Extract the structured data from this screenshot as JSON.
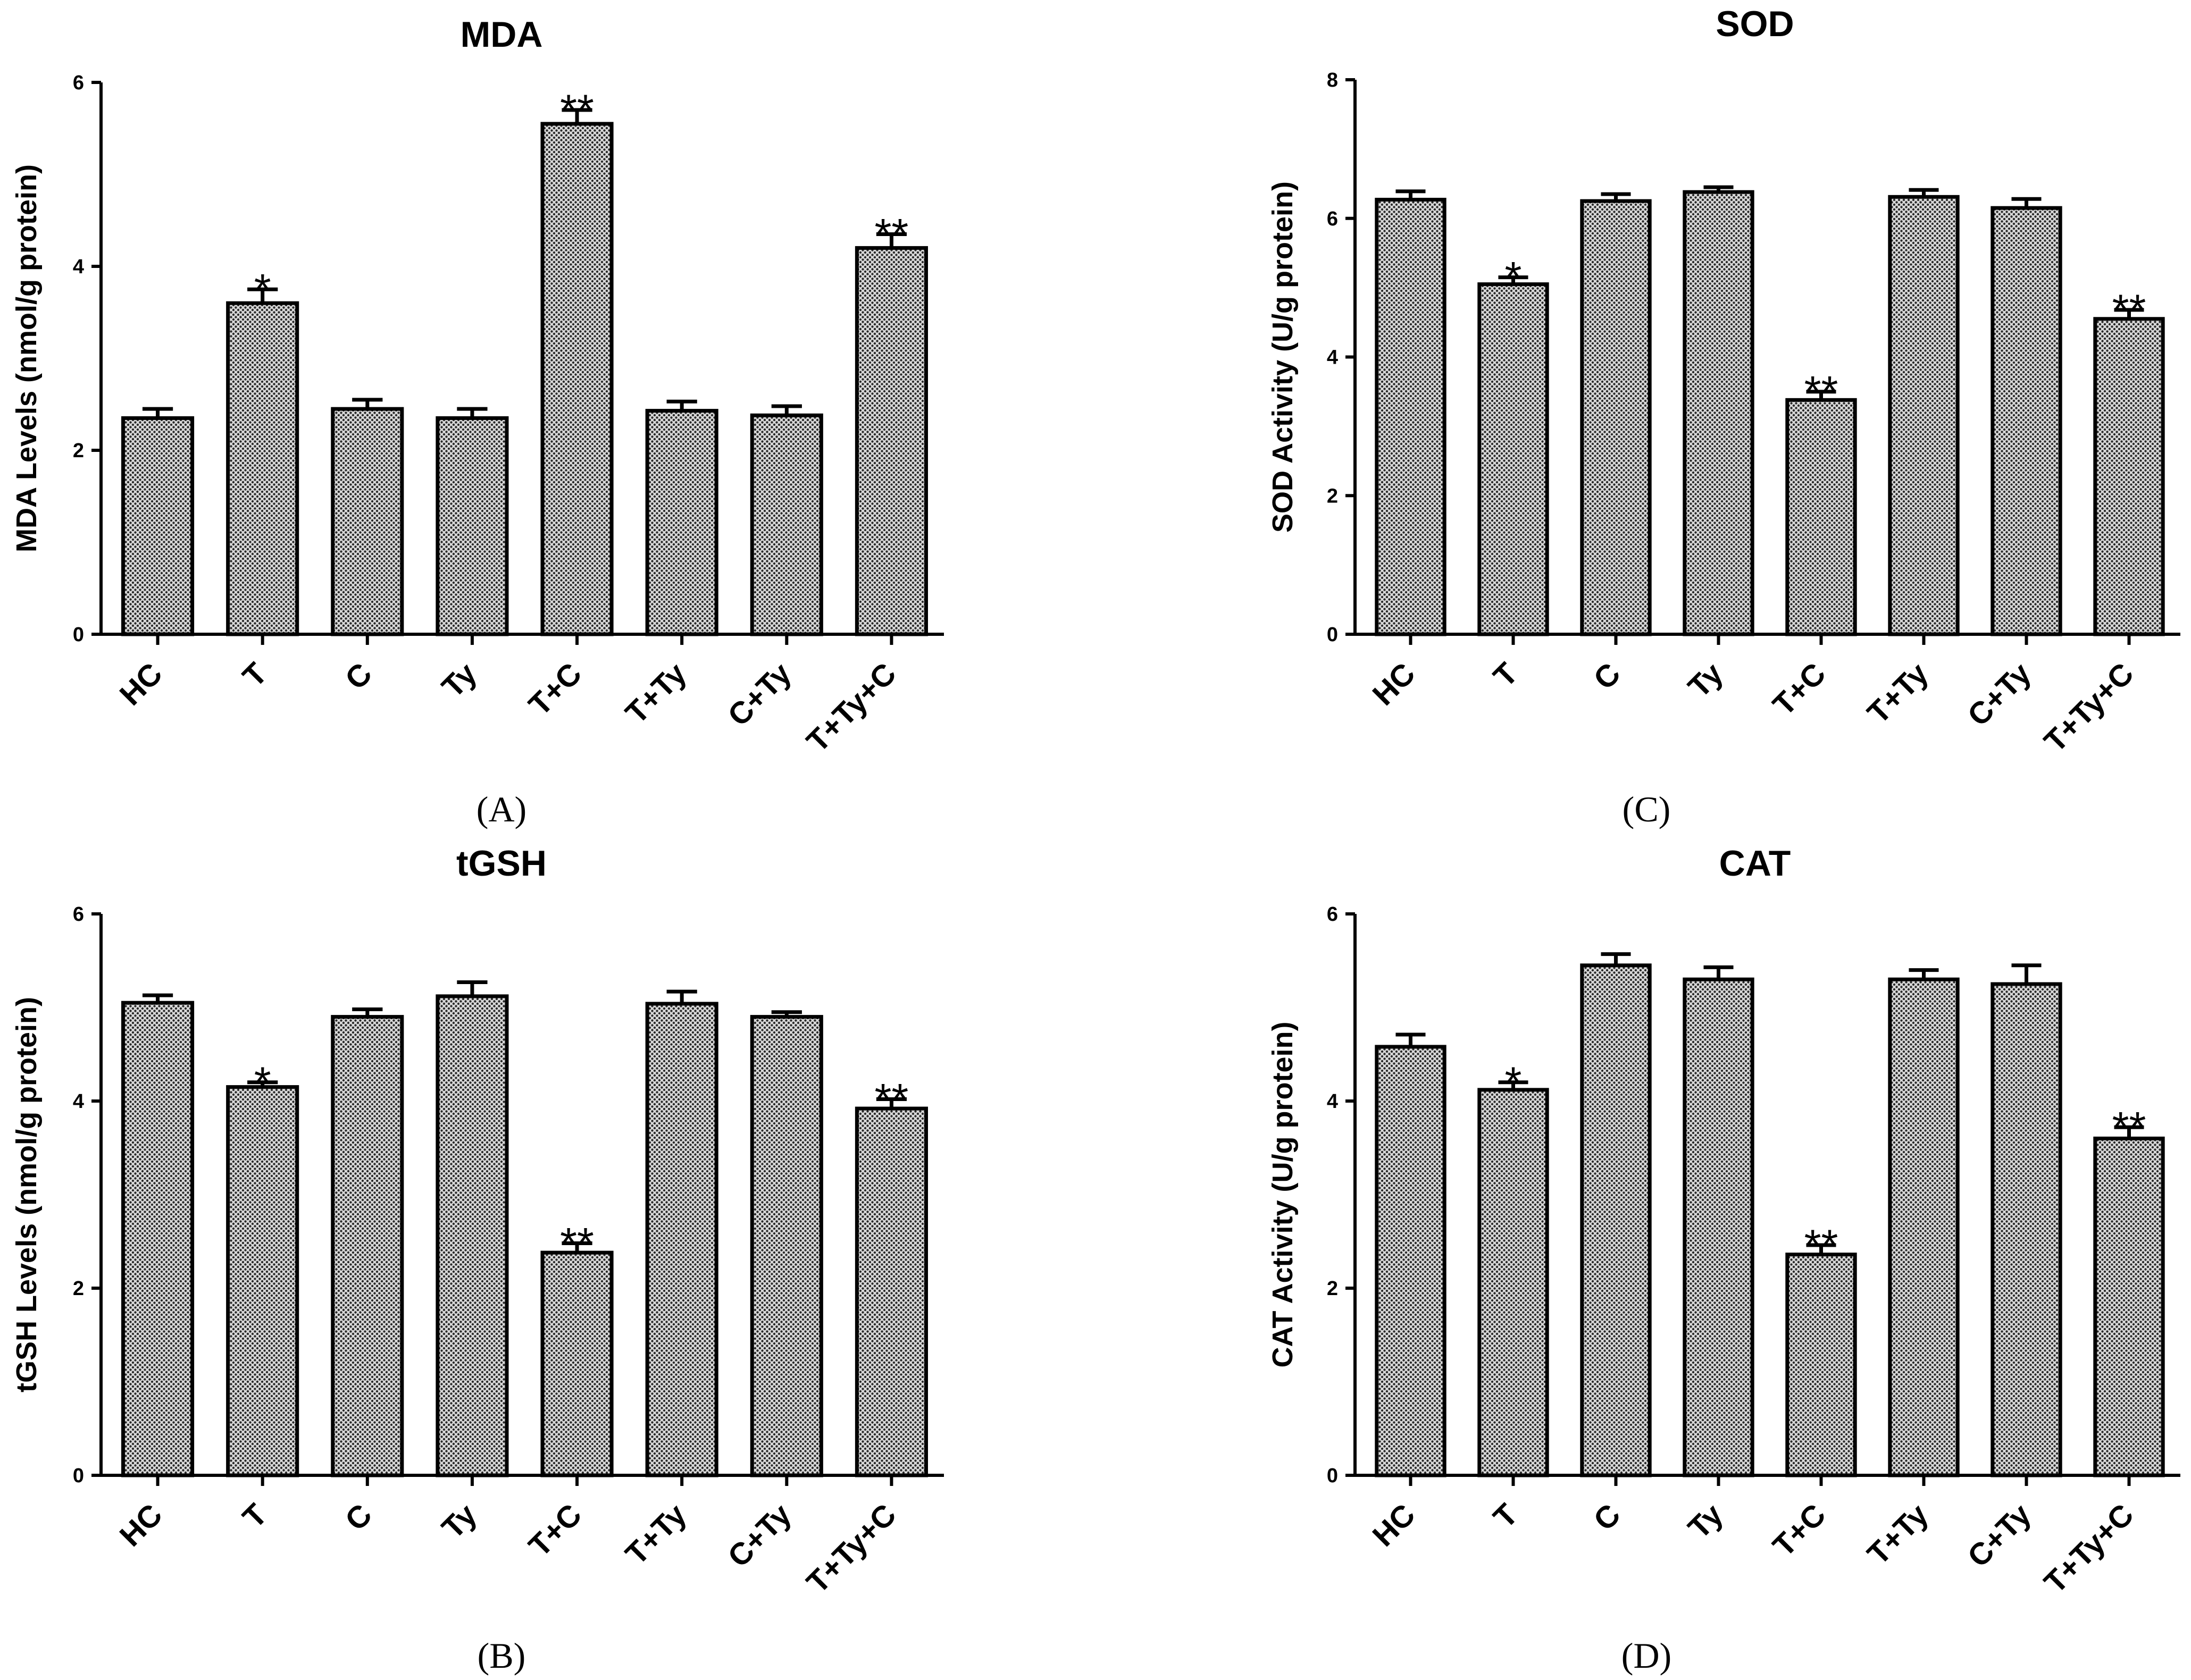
{
  "chart_data": [
    {
      "type": "bar",
      "title": "MDA",
      "panel_label": "(A)",
      "ylabel": "MDA Levels  (nmol/g protein)",
      "xlabel": "",
      "categories": [
        "HC",
        "T",
        "C",
        "Ty",
        "T+C",
        "T+Ty",
        "C+Ty",
        "T+Ty+C"
      ],
      "values": [
        2.35,
        3.6,
        2.45,
        2.35,
        5.55,
        2.43,
        2.38,
        4.2
      ],
      "errors": [
        0.1,
        0.15,
        0.1,
        0.1,
        0.15,
        0.1,
        0.1,
        0.15
      ],
      "significance": [
        "",
        "*",
        "",
        "",
        "**",
        "",
        "",
        "**"
      ],
      "ylim": [
        0,
        6
      ],
      "yticks": [
        0,
        2,
        4,
        6
      ],
      "yticklabels": [
        "0",
        "2",
        "4",
        "6"
      ]
    },
    {
      "type": "bar",
      "title": "tGSH",
      "panel_label": "(B)",
      "ylabel": "tGSH Levels  (nmol/g protein)",
      "xlabel": "",
      "categories": [
        "HC",
        "T",
        "C",
        "Ty",
        "T+C",
        "T+Ty",
        "C+Ty",
        "T+Ty+C"
      ],
      "values": [
        5.05,
        4.15,
        4.9,
        5.12,
        2.38,
        5.04,
        4.9,
        3.92
      ],
      "errors": [
        0.08,
        0.05,
        0.08,
        0.15,
        0.1,
        0.13,
        0.05,
        0.1
      ],
      "significance": [
        "",
        "*",
        "",
        "",
        "**",
        "",
        "",
        "**"
      ],
      "ylim": [
        0,
        6
      ],
      "yticks": [
        0,
        2,
        4,
        6
      ],
      "yticklabels": [
        "0",
        "2",
        "4",
        "6"
      ]
    },
    {
      "type": "bar",
      "title": "SOD",
      "panel_label": "(C)",
      "ylabel": "SOD Activity  (U/g protein)",
      "xlabel": "",
      "categories": [
        "HC",
        "T",
        "C",
        "Ty",
        "T+C",
        "T+Ty",
        "C+Ty",
        "T+Ty+C"
      ],
      "values": [
        6.27,
        5.05,
        6.25,
        6.38,
        3.38,
        6.31,
        6.15,
        4.55
      ],
      "errors": [
        0.12,
        0.1,
        0.1,
        0.07,
        0.12,
        0.1,
        0.13,
        0.13
      ],
      "significance": [
        "",
        "*",
        "",
        "",
        "**",
        "",
        "",
        "**"
      ],
      "ylim": [
        0,
        8
      ],
      "yticks": [
        0,
        2,
        4,
        6,
        8
      ],
      "yticklabels": [
        "0",
        "2",
        "4",
        "6",
        "8"
      ]
    },
    {
      "type": "bar",
      "title": "CAT",
      "panel_label": "(D)",
      "ylabel": "CAT Activity  (U/g protein)",
      "xlabel": "",
      "categories": [
        "HC",
        "T",
        "C",
        "Ty",
        "T+C",
        "T+Ty",
        "C+Ty",
        "T+Ty+C"
      ],
      "values": [
        4.58,
        4.12,
        5.45,
        5.3,
        2.36,
        5.3,
        5.25,
        3.6
      ],
      "errors": [
        0.13,
        0.08,
        0.12,
        0.13,
        0.1,
        0.1,
        0.2,
        0.12
      ],
      "significance": [
        "",
        "*",
        "",
        "",
        "**",
        "",
        "",
        "**"
      ],
      "ylim": [
        0,
        6
      ],
      "yticks": [
        0,
        2,
        4,
        6
      ],
      "yticklabels": [
        "0",
        "2",
        "4",
        "6"
      ]
    }
  ]
}
